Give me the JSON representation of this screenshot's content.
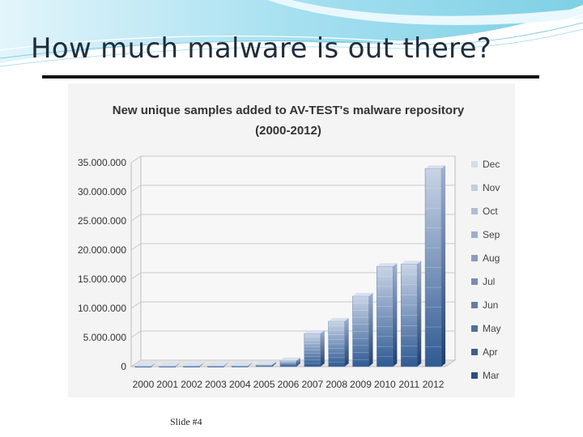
{
  "slide": {
    "title": "How much malware is out there?",
    "footer": "Slide #4"
  },
  "colors": {
    "background_wave": "#8ed6ea",
    "title_rule": "#111111",
    "bar_top": "#c9d4e6",
    "bar_bottom": "#2f5a93"
  },
  "chart_data": {
    "type": "bar",
    "stacked": true,
    "three_d": true,
    "title": "New unique samples added to AV-TEST's malware repository",
    "subtitle": "(2000-2012)",
    "categories": [
      "2000",
      "2001",
      "2002",
      "2003",
      "2004",
      "2005",
      "2006",
      "2007",
      "2008",
      "2009",
      "2010",
      "2011",
      "2012"
    ],
    "totals": [
      80000,
      90000,
      100000,
      100000,
      130000,
      300000,
      1000000,
      5700000,
      7800000,
      12100000,
      17200000,
      17600000,
      34000000
    ],
    "y_ticks": [
      "0",
      "5.000.000",
      "10.000.000",
      "15.000.000",
      "20.000.000",
      "25.000.000",
      "30.000.000",
      "35.000.000"
    ],
    "ylim": [
      0,
      35000000
    ],
    "grid": true,
    "legend_position": "right",
    "legend": [
      "Dec",
      "Nov",
      "Oct",
      "Sep",
      "Aug",
      "Jul",
      "Jun",
      "May",
      "Apr",
      "Mar"
    ]
  }
}
